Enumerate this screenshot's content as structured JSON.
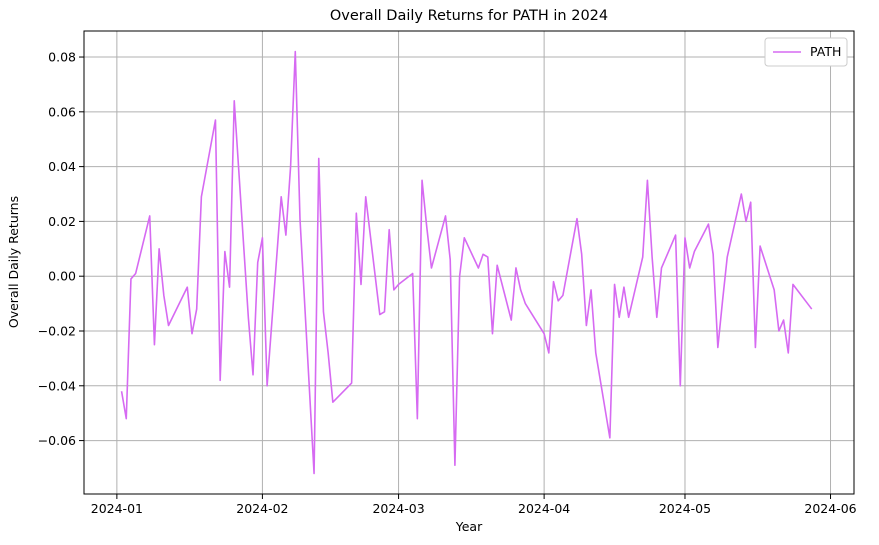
{
  "chart_data": {
    "type": "line",
    "title": "Overall Daily Returns for PATH in 2024",
    "xlabel": "Year",
    "ylabel": "Overall Daily Returns",
    "grid": true,
    "legend_position": "top-right",
    "xlim": [
      "2023-12-25",
      "2024-06-06"
    ],
    "ylim": [
      -0.0795,
      0.0895
    ],
    "x_ticks": [
      "2024-01-01",
      "2024-02-01",
      "2024-03-01",
      "2024-04-01",
      "2024-05-01",
      "2024-06-01"
    ],
    "x_tick_labels": [
      "2024-01",
      "2024-02",
      "2024-03",
      "2024-04",
      "2024-05",
      "2024-06"
    ],
    "y_ticks": [
      -0.06,
      -0.04,
      -0.02,
      0.0,
      0.02,
      0.04,
      0.06,
      0.08
    ],
    "y_tick_labels": [
      "−0.06",
      "−0.04",
      "−0.02",
      "0.00",
      "0.02",
      "0.04",
      "0.06",
      "0.08"
    ],
    "series": [
      {
        "name": "PATH",
        "color": "#d66af2",
        "x": [
          "2024-01-02",
          "2024-01-03",
          "2024-01-04",
          "2024-01-05",
          "2024-01-08",
          "2024-01-09",
          "2024-01-10",
          "2024-01-11",
          "2024-01-12",
          "2024-01-16",
          "2024-01-17",
          "2024-01-18",
          "2024-01-19",
          "2024-01-22",
          "2024-01-23",
          "2024-01-24",
          "2024-01-25",
          "2024-01-26",
          "2024-01-29",
          "2024-01-30",
          "2024-01-31",
          "2024-02-01",
          "2024-02-02",
          "2024-02-05",
          "2024-02-06",
          "2024-02-07",
          "2024-02-08",
          "2024-02-09",
          "2024-02-12",
          "2024-02-13",
          "2024-02-14",
          "2024-02-15",
          "2024-02-16",
          "2024-02-20",
          "2024-02-21",
          "2024-02-22",
          "2024-02-23",
          "2024-02-26",
          "2024-02-27",
          "2024-02-28",
          "2024-02-29",
          "2024-03-01",
          "2024-03-04",
          "2024-03-05",
          "2024-03-06",
          "2024-03-07",
          "2024-03-08",
          "2024-03-11",
          "2024-03-12",
          "2024-03-13",
          "2024-03-14",
          "2024-03-15",
          "2024-03-18",
          "2024-03-19",
          "2024-03-20",
          "2024-03-21",
          "2024-03-22",
          "2024-03-25",
          "2024-03-26",
          "2024-03-27",
          "2024-03-28",
          "2024-04-01",
          "2024-04-02",
          "2024-04-03",
          "2024-04-04",
          "2024-04-05",
          "2024-04-08",
          "2024-04-09",
          "2024-04-10",
          "2024-04-11",
          "2024-04-12",
          "2024-04-15",
          "2024-04-16",
          "2024-04-17",
          "2024-04-18",
          "2024-04-19",
          "2024-04-22",
          "2024-04-23",
          "2024-04-24",
          "2024-04-25",
          "2024-04-26",
          "2024-04-29",
          "2024-04-30",
          "2024-05-01",
          "2024-05-02",
          "2024-05-03",
          "2024-05-06",
          "2024-05-07",
          "2024-05-08",
          "2024-05-09",
          "2024-05-10",
          "2024-05-13",
          "2024-05-14",
          "2024-05-15",
          "2024-05-16",
          "2024-05-17",
          "2024-05-20",
          "2024-05-21",
          "2024-05-22",
          "2024-05-23",
          "2024-05-24",
          "2024-05-28"
        ],
        "y": [
          -0.042,
          -0.052,
          -0.001,
          0.001,
          0.022,
          -0.025,
          0.01,
          -0.007,
          -0.018,
          -0.004,
          -0.021,
          -0.012,
          0.029,
          0.057,
          -0.038,
          0.009,
          -0.004,
          0.064,
          -0.015,
          -0.036,
          0.005,
          0.014,
          -0.04,
          0.029,
          0.015,
          0.04,
          0.082,
          0.021,
          -0.072,
          0.043,
          -0.013,
          -0.028,
          -0.046,
          -0.039,
          0.023,
          -0.003,
          0.029,
          -0.014,
          -0.013,
          0.017,
          -0.005,
          -0.003,
          0.001,
          -0.052,
          0.035,
          0.018,
          0.003,
          0.022,
          0.006,
          -0.069,
          0.0,
          0.014,
          0.003,
          0.008,
          0.007,
          -0.021,
          0.004,
          -0.016,
          0.003,
          -0.005,
          -0.01,
          -0.021,
          -0.028,
          -0.002,
          -0.009,
          -0.007,
          0.021,
          0.008,
          -0.018,
          -0.005,
          -0.028,
          -0.059,
          -0.003,
          -0.015,
          -0.004,
          -0.015,
          0.007,
          0.035,
          0.007,
          -0.015,
          0.003,
          0.015,
          -0.04,
          0.014,
          0.003,
          0.009,
          0.019,
          0.008,
          -0.026,
          -0.009,
          0.007,
          0.03,
          0.02,
          0.027,
          -0.026,
          0.011,
          -0.005,
          -0.02,
          -0.016,
          -0.028,
          -0.003,
          -0.012
        ]
      }
    ]
  }
}
